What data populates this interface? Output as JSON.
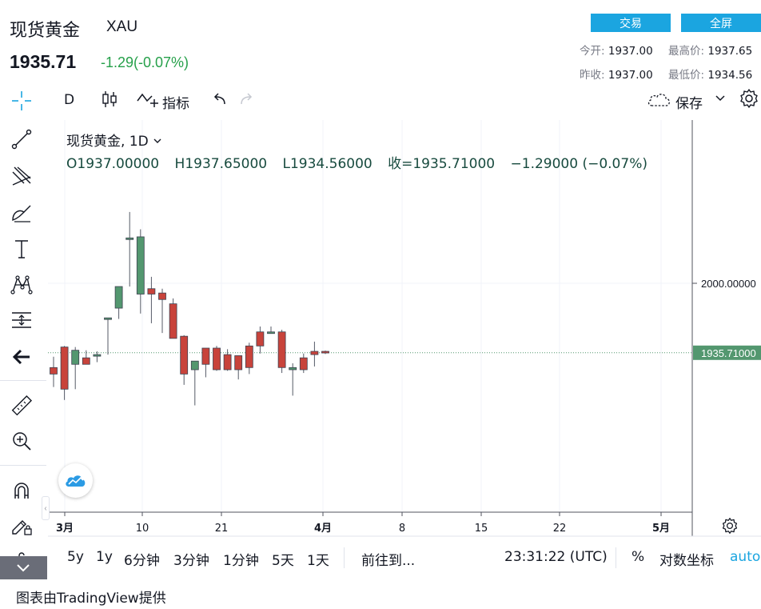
{
  "header": {
    "title": "现货黄金",
    "symbol": "XAU",
    "price": "1935.71",
    "change": "-1.29(-0.07%)",
    "trade_label": "交易",
    "fullscreen_label": "全屏",
    "stats": {
      "open_label": "今开:",
      "open": "1937.00",
      "high_label": "最高价:",
      "high": "1937.65",
      "prev_label": "昨收:",
      "prev": "1937.00",
      "low_label": "最低价:",
      "low": "1934.56"
    }
  },
  "toolbar": {
    "interval": "D",
    "indicators_label": "指标",
    "save_label": "保存"
  },
  "legend": {
    "name": "现货黄金, 1D",
    "open": "O1937.00000",
    "high": "H1937.65000",
    "low": "L1934.56000",
    "close": "收=1935.71000",
    "delta": "−1.29000 (−0.07%)"
  },
  "price_axis": {
    "gridline_label": "2000.00000",
    "current_label": "1935.71000"
  },
  "time_axis": [
    "3月",
    "10",
    "21",
    "4月",
    "8",
    "15",
    "22",
    "5月"
  ],
  "bottom_bar": {
    "ranges": [
      "5y",
      "1y",
      "6分钟",
      "3分钟",
      "1分钟",
      "5天",
      "1天"
    ],
    "goto_label": "前往到...",
    "clock": "23:31:22 (UTC)",
    "percent_label": "%",
    "log_label": "对数坐标",
    "auto_label": "auto"
  },
  "credit": "图表由TradingView提供",
  "colors": {
    "up": "#53976f",
    "down": "#c8433b",
    "accent": "#1ba5e0",
    "change": "#26a04a"
  },
  "chart_data": {
    "type": "candlestick",
    "x_tick_labels": [
      "3月",
      "10",
      "21",
      "4月",
      "8",
      "15",
      "22",
      "5月"
    ],
    "y_reference": 2000,
    "current_price": 1935.71,
    "series": [
      {
        "o": 1922.0,
        "h": 1932.0,
        "l": 1904.0,
        "c": 1916.0
      },
      {
        "o": 1941.0,
        "h": 1942.0,
        "l": 1892.0,
        "c": 1902.0
      },
      {
        "o": 1925.0,
        "h": 1941.0,
        "l": 1902.0,
        "c": 1938.0
      },
      {
        "o": 1931.0,
        "h": 1938.0,
        "l": 1925.0,
        "c": 1925.0
      },
      {
        "o": 1934.0,
        "h": 1937.0,
        "l": 1927.0,
        "c": 1934.0
      },
      {
        "o": 1968.0,
        "h": 1968.0,
        "l": 1934.0,
        "c": 1968.0
      },
      {
        "o": 1977.0,
        "h": 1993.0,
        "l": 1967.0,
        "c": 1997.0
      },
      {
        "o": 2042.0,
        "h": 2066.0,
        "l": 1997.0,
        "c": 2042.0
      },
      {
        "o": 1990.0,
        "h": 2050.0,
        "l": 1972.0,
        "c": 2043.0
      },
      {
        "o": 1995.0,
        "h": 2006.0,
        "l": 1963.0,
        "c": 1990.0
      },
      {
        "o": 1991.0,
        "h": 1995.0,
        "l": 1954.0,
        "c": 1985.0
      },
      {
        "o": 1981.0,
        "h": 1986.0,
        "l": 1950.0,
        "c": 1949.0
      },
      {
        "o": 1951.0,
        "h": 1952.0,
        "l": 1906.0,
        "c": 1916.0
      },
      {
        "o": 1920.0,
        "h": 1924.0,
        "l": 1887.0,
        "c": 1928.0
      },
      {
        "o": 1940.0,
        "h": 1940.0,
        "l": 1913.0,
        "c": 1925.0
      },
      {
        "o": 1940.0,
        "h": 1942.0,
        "l": 1919.0,
        "c": 1920.0
      },
      {
        "o": 1934.0,
        "h": 1939.0,
        "l": 1919.0,
        "c": 1920.0
      },
      {
        "o": 1933.0,
        "h": 1933.0,
        "l": 1911.0,
        "c": 1920.0
      },
      {
        "o": 1942.0,
        "h": 1945.0,
        "l": 1916.0,
        "c": 1922.0
      },
      {
        "o": 1955.0,
        "h": 1960.0,
        "l": 1935.0,
        "c": 1942.0
      },
      {
        "o": 1955.0,
        "h": 1960.0,
        "l": 1954.0,
        "c": 1955.0
      },
      {
        "o": 1955.0,
        "h": 1957.0,
        "l": 1917.0,
        "c": 1922.0
      },
      {
        "o": 1920.0,
        "h": 1926.0,
        "l": 1896.0,
        "c": 1922.0
      },
      {
        "o": 1931.0,
        "h": 1935.0,
        "l": 1917.0,
        "c": 1920.0
      },
      {
        "o": 1937.0,
        "h": 1946.0,
        "l": 1923.0,
        "c": 1934.0
      },
      {
        "o": 1937.0,
        "h": 1937.65,
        "l": 1934.56,
        "c": 1935.71
      }
    ]
  }
}
